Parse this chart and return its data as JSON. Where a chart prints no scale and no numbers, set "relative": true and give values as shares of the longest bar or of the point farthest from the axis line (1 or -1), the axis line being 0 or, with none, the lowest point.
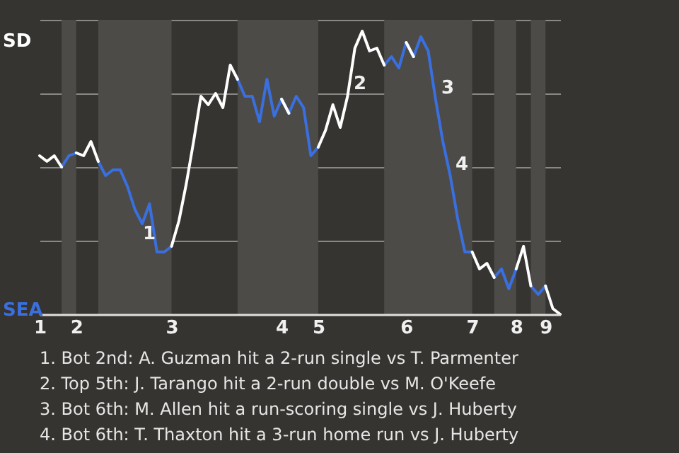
{
  "chart_data": {
    "type": "line",
    "relative": true,
    "categories": [
      "1",
      null,
      null,
      null,
      null,
      "2",
      null,
      null,
      null,
      null,
      null,
      null,
      null,
      null,
      null,
      null,
      null,
      null,
      "3",
      null,
      null,
      null,
      null,
      null,
      null,
      null,
      null,
      null,
      null,
      null,
      null,
      null,
      null,
      "4",
      null,
      null,
      null,
      null,
      "5",
      null,
      null,
      null,
      null,
      null,
      null,
      null,
      null,
      null,
      null,
      null,
      "6",
      null,
      null,
      null,
      null,
      null,
      null,
      null,
      null,
      "7",
      null,
      null,
      null,
      null,
      null,
      "8",
      null,
      null,
      null,
      "9",
      null,
      null
    ],
    "series": [
      {
        "color": "#ffffff",
        "values": [
          0.56,
          0.54,
          0.56,
          0.52,
          null,
          0.57,
          0.56,
          0.61,
          0.54,
          null,
          null,
          null,
          null,
          null,
          null,
          null,
          null,
          null,
          0.24,
          0.33,
          0.46,
          0.61,
          0.77,
          0.74,
          0.78,
          0.73,
          0.88,
          0.83,
          null,
          null,
          null,
          null,
          null,
          0.76,
          0.71,
          null,
          null,
          null,
          0.59,
          0.65,
          0.74,
          0.66,
          0.77,
          0.94,
          1,
          0.93,
          0.94,
          0.88,
          null,
          null,
          0.96,
          0.91,
          null,
          null,
          null,
          null,
          null,
          null,
          null,
          0.22,
          0.16,
          0.18,
          0.13,
          null,
          null,
          0.16,
          0.24,
          0.1,
          null,
          0.1,
          0.02,
          0
        ]
      },
      {
        "color": "#3a6fe0",
        "values": [
          null,
          null,
          null,
          0.52,
          0.56,
          0.57,
          null,
          null,
          0.54,
          0.49,
          0.51,
          0.51,
          0.45,
          0.37,
          0.32,
          0.39,
          0.22,
          0.22,
          0.24,
          null,
          null,
          null,
          null,
          null,
          null,
          null,
          null,
          0.83,
          0.77,
          0.77,
          0.68,
          0.83,
          0.7,
          0.76,
          0.71,
          0.77,
          0.73,
          0.56,
          0.59,
          null,
          null,
          null,
          null,
          null,
          null,
          null,
          null,
          0.88,
          0.91,
          0.87,
          0.96,
          0.91,
          0.98,
          0.93,
          0.76,
          0.61,
          0.49,
          0.34,
          0.22,
          0.22,
          null,
          null,
          0.13,
          0.16,
          0.09,
          0.16,
          null,
          0.1,
          0.07,
          0.1,
          null,
          null
        ]
      }
    ],
    "grid": "y",
    "annotations": [
      "SD",
      "SEA",
      "1",
      "2",
      "3",
      "4",
      "1. Bot 2nd: A. Guzman hit a 2-run single vs T. Parmenter",
      "2. Top 5th: J. Tarango hit a 2-run double vs M. O'Keefe",
      "3. Bot 6th: M. Allen hit a run-scoring single vs J. Huberty",
      "4. Bot 6th: T. Thaxton hit a 3-run home run vs J. Huberty"
    ]
  }
}
